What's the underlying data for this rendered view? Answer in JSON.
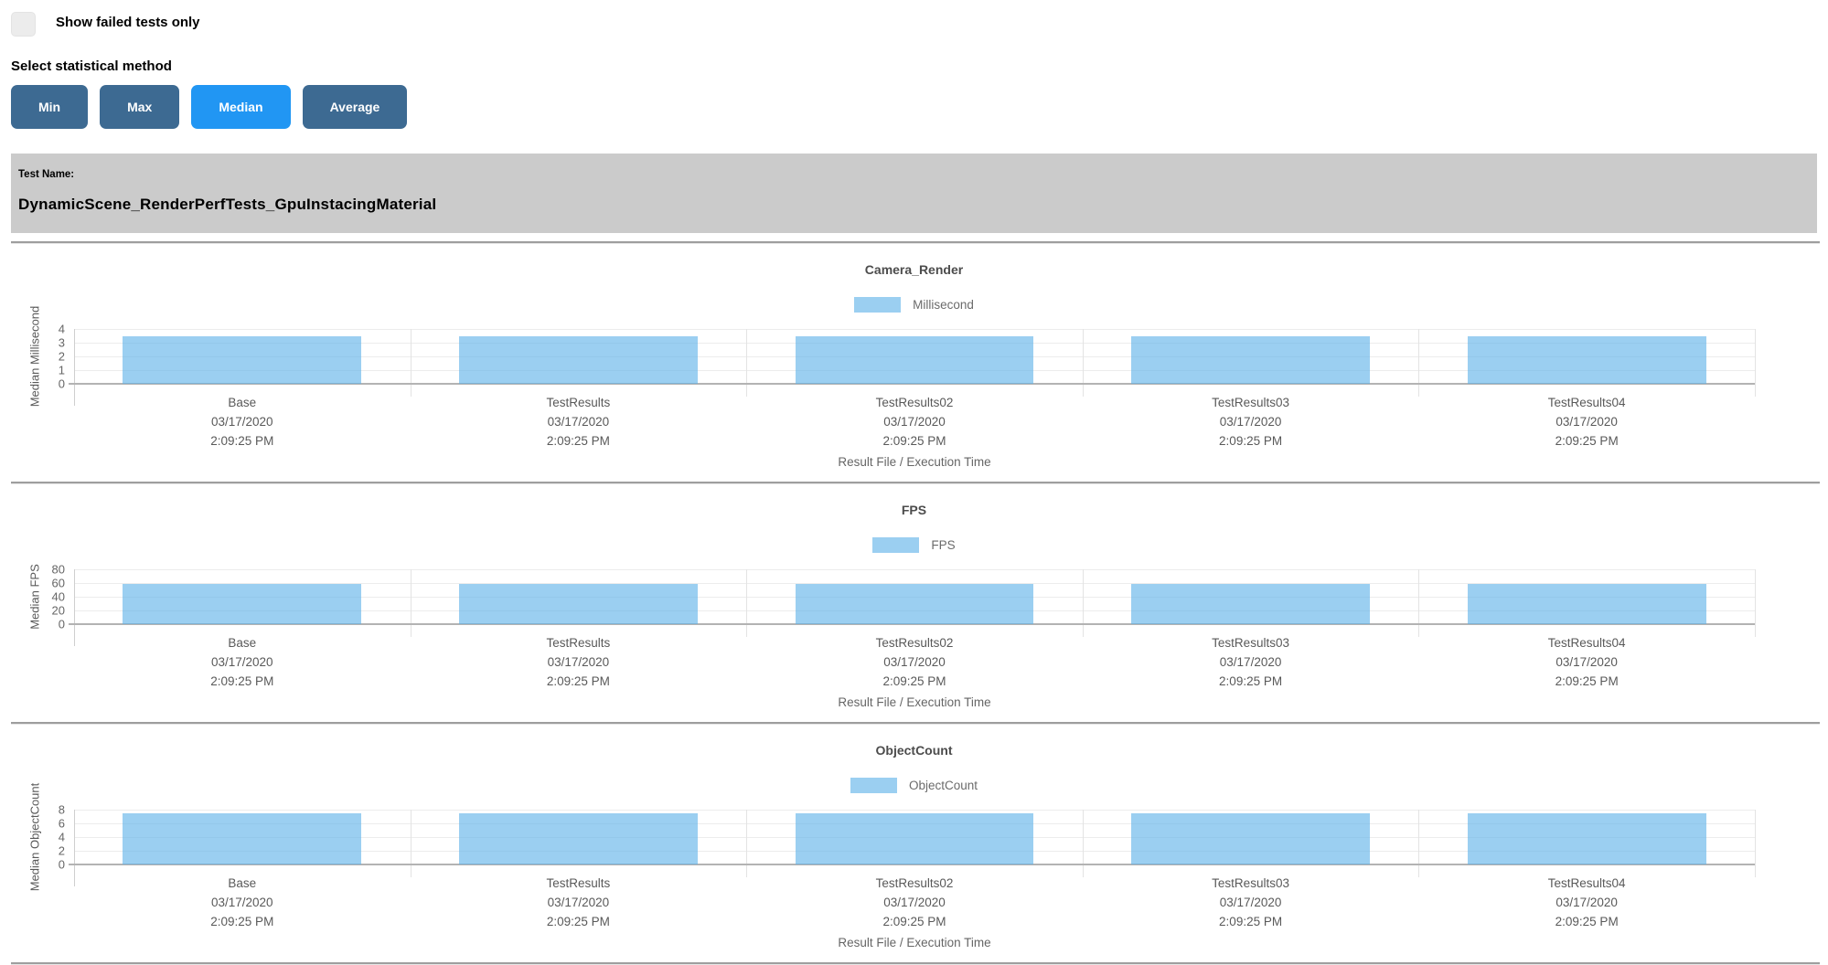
{
  "controls": {
    "show_failed_label": "Show failed tests only",
    "show_failed_checked": false,
    "stat_method_label": "Select statistical method",
    "buttons": [
      {
        "label": "Min",
        "active": false
      },
      {
        "label": "Max",
        "active": false
      },
      {
        "label": "Median",
        "active": true
      },
      {
        "label": "Average",
        "active": false
      }
    ]
  },
  "test_banner": {
    "label": "Test Name:",
    "name": "DynamicScene_RenderPerfTests_GpuInstacingMaterial"
  },
  "colors": {
    "button_inactive": "#3d6a92",
    "button_active": "#2196f3",
    "bar_fill": "#9ed0f2",
    "banner_bg": "#cbcbcb",
    "checkbox_bg": "#ececec"
  },
  "chart_data": [
    {
      "type": "bar",
      "title": "Camera_Render",
      "legend": "Millisecond",
      "ylabel": "Median Millisecond",
      "xlabel": "Result File / Execution Time",
      "ylim": [
        0,
        4
      ],
      "yticks": [
        4,
        3,
        2,
        1,
        0
      ],
      "grid": true,
      "legend_position": "top-center",
      "categories": [
        {
          "name": "Base",
          "date": "03/17/2020",
          "time": "2:09:25 PM"
        },
        {
          "name": "TestResults",
          "date": "03/17/2020",
          "time": "2:09:25 PM"
        },
        {
          "name": "TestResults02",
          "date": "03/17/2020",
          "time": "2:09:25 PM"
        },
        {
          "name": "TestResults03",
          "date": "03/17/2020",
          "time": "2:09:25 PM"
        },
        {
          "name": "TestResults04",
          "date": "03/17/2020",
          "time": "2:09:25 PM"
        }
      ],
      "values": [
        3.5,
        3.5,
        3.5,
        3.5,
        3.5
      ]
    },
    {
      "type": "bar",
      "title": "FPS",
      "legend": "FPS",
      "ylabel": "Median FPS",
      "xlabel": "Result File / Execution Time",
      "ylim": [
        0,
        80
      ],
      "yticks": [
        80,
        60,
        40,
        20,
        0
      ],
      "grid": true,
      "legend_position": "top-center",
      "categories": [
        {
          "name": "Base",
          "date": "03/17/2020",
          "time": "2:09:25 PM"
        },
        {
          "name": "TestResults",
          "date": "03/17/2020",
          "time": "2:09:25 PM"
        },
        {
          "name": "TestResults02",
          "date": "03/17/2020",
          "time": "2:09:25 PM"
        },
        {
          "name": "TestResults03",
          "date": "03/17/2020",
          "time": "2:09:25 PM"
        },
        {
          "name": "TestResults04",
          "date": "03/17/2020",
          "time": "2:09:25 PM"
        }
      ],
      "values": [
        59,
        59,
        59,
        59,
        59
      ]
    },
    {
      "type": "bar",
      "title": "ObjectCount",
      "legend": "ObjectCount",
      "ylabel": "Median ObjectCount",
      "xlabel": "Result File / Execution Time",
      "ylim": [
        0,
        8
      ],
      "yticks": [
        8,
        6,
        4,
        2,
        0
      ],
      "grid": true,
      "legend_position": "top-center",
      "categories": [
        {
          "name": "Base",
          "date": "03/17/2020",
          "time": "2:09:25 PM"
        },
        {
          "name": "TestResults",
          "date": "03/17/2020",
          "time": "2:09:25 PM"
        },
        {
          "name": "TestResults02",
          "date": "03/17/2020",
          "time": "2:09:25 PM"
        },
        {
          "name": "TestResults03",
          "date": "03/17/2020",
          "time": "2:09:25 PM"
        },
        {
          "name": "TestResults04",
          "date": "03/17/2020",
          "time": "2:09:25 PM"
        }
      ],
      "values": [
        7.5,
        7.5,
        7.5,
        7.5,
        7.5
      ]
    }
  ]
}
